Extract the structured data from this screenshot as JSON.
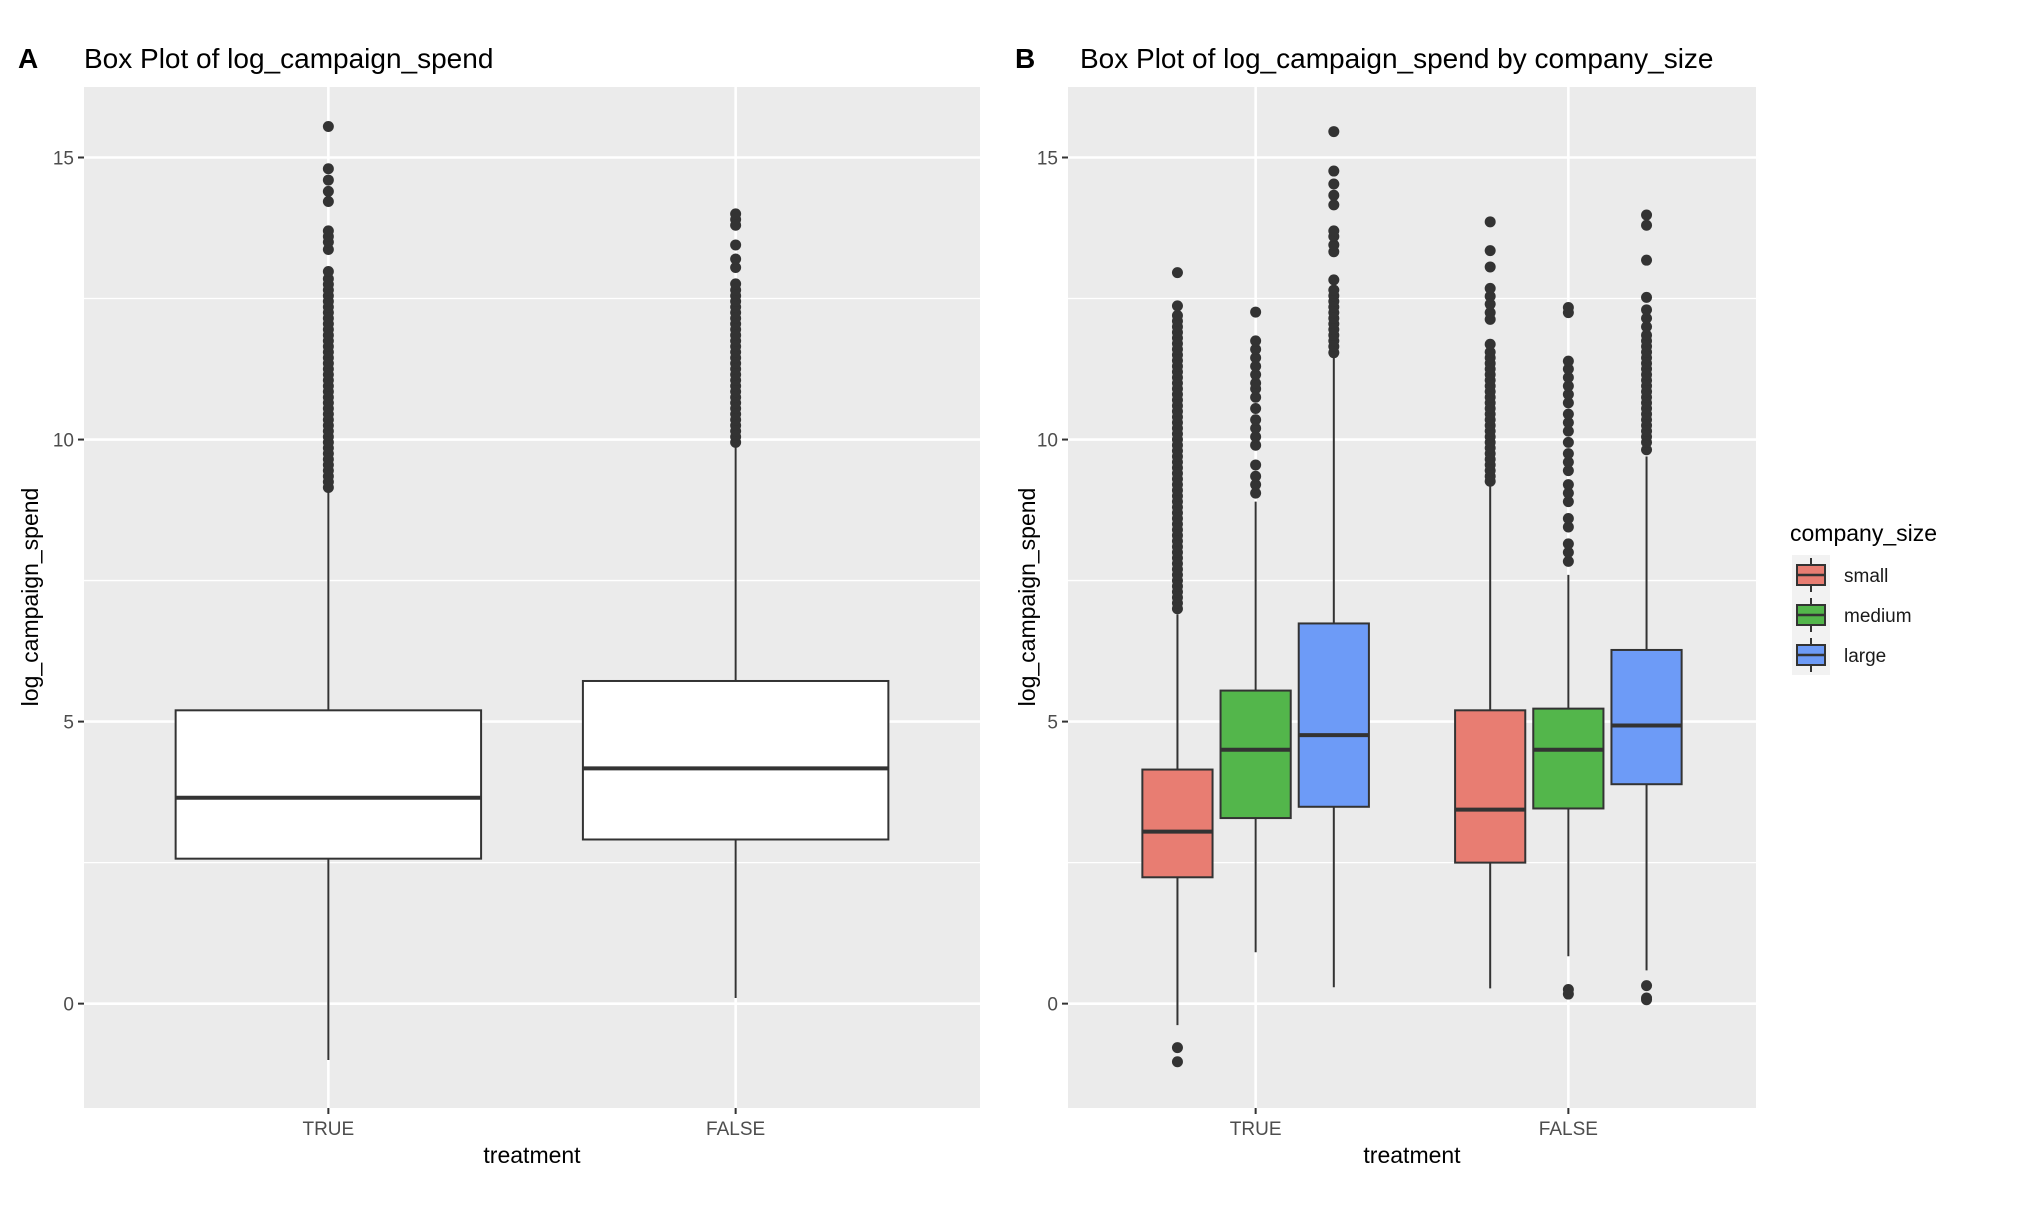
{
  "figure": {
    "panel_a": {
      "tag": "A",
      "title": "Box Plot of log_campaign_spend",
      "xlabel": "treatment",
      "ylabel": "log_campaign_spend"
    },
    "panel_b": {
      "tag": "B",
      "title": "Box Plot of log_campaign_spend by company_size",
      "xlabel": "treatment",
      "ylabel": "log_campaign_spend"
    },
    "legend": {
      "title": "company_size",
      "items": [
        {
          "label": "small",
          "color": "#F8766D"
        },
        {
          "label": "medium",
          "color": "#00BA38"
        },
        {
          "label": "large",
          "color": "#619CFF"
        }
      ]
    },
    "colors": {
      "panel_bg": "#EBEBEB",
      "grid": "#FFFFFF",
      "box_line": "#333333",
      "outlier": "#333333",
      "small": "#E87D72",
      "medium": "#53B64B",
      "large": "#6D9BF7"
    }
  },
  "chart_data": [
    {
      "type": "box",
      "title": "Box Plot of log_campaign_spend",
      "xlabel": "treatment",
      "ylabel": "log_campaign_spend",
      "categories": [
        "TRUE",
        "FALSE"
      ],
      "yticks": [
        0,
        5,
        10,
        15
      ],
      "ylim": [
        -1.85,
        16.25
      ],
      "grid": true,
      "boxes": [
        {
          "category": "TRUE",
          "whisker_low": -1.0,
          "q1": 2.57,
          "median": 3.65,
          "q3": 5.2,
          "whisker_high": 9.1,
          "outliers": [
            9.15,
            9.25,
            9.35,
            9.45,
            9.55,
            9.65,
            9.75,
            9.85,
            9.95,
            10.05,
            10.15,
            10.25,
            10.35,
            10.45,
            10.55,
            10.65,
            10.75,
            10.85,
            10.95,
            11.05,
            11.15,
            11.25,
            11.35,
            11.45,
            11.55,
            11.65,
            11.75,
            11.85,
            11.95,
            12.05,
            12.15,
            12.25,
            12.35,
            12.45,
            12.55,
            12.65,
            12.75,
            12.85,
            12.98,
            13.37,
            13.5,
            13.6,
            13.7,
            14.22,
            14.4,
            14.6,
            14.8,
            15.55
          ]
        },
        {
          "category": "FALSE",
          "whisker_low": 0.1,
          "q1": 2.91,
          "median": 4.17,
          "q3": 5.72,
          "whisker_high": 9.9,
          "outliers": [
            9.95,
            10.05,
            10.15,
            10.25,
            10.35,
            10.45,
            10.55,
            10.65,
            10.75,
            10.85,
            10.95,
            11.05,
            11.15,
            11.25,
            11.35,
            11.45,
            11.55,
            11.65,
            11.75,
            11.85,
            11.95,
            12.05,
            12.15,
            12.25,
            12.35,
            12.45,
            12.55,
            12.65,
            12.76,
            13.05,
            13.2,
            13.45,
            13.8,
            13.9,
            14.0
          ]
        }
      ]
    },
    {
      "type": "box",
      "title": "Box Plot of log_campaign_spend by company_size",
      "xlabel": "treatment",
      "ylabel": "log_campaign_spend",
      "categories": [
        "TRUE",
        "FALSE"
      ],
      "yticks": [
        0,
        5,
        10,
        15
      ],
      "ylim": [
        -1.85,
        16.25
      ],
      "grid": true,
      "legend": {
        "title": "company_size",
        "entries": [
          "small",
          "medium",
          "large"
        ],
        "position": "right"
      },
      "groups": [
        {
          "category": "TRUE",
          "series": "small",
          "whisker_low": -0.38,
          "q1": 2.24,
          "median": 3.05,
          "q3": 4.15,
          "whisker_high": 6.9,
          "outliers": [
            -1.03,
            -0.78,
            7.0,
            7.1,
            7.2,
            7.3,
            7.4,
            7.5,
            7.6,
            7.7,
            7.8,
            7.9,
            8.0,
            8.1,
            8.2,
            8.3,
            8.4,
            8.5,
            8.6,
            8.7,
            8.8,
            8.9,
            9.0,
            9.1,
            9.2,
            9.3,
            9.4,
            9.5,
            9.6,
            9.7,
            9.8,
            9.9,
            10.0,
            10.1,
            10.2,
            10.3,
            10.4,
            10.5,
            10.6,
            10.7,
            10.8,
            10.9,
            11.0,
            11.1,
            11.2,
            11.3,
            11.4,
            11.5,
            11.6,
            11.7,
            11.8,
            11.9,
            12.0,
            12.1,
            12.2,
            12.37,
            12.96
          ]
        },
        {
          "category": "TRUE",
          "series": "medium",
          "whisker_low": 0.91,
          "q1": 3.29,
          "median": 4.5,
          "q3": 5.55,
          "whisker_high": 8.9,
          "outliers": [
            9.05,
            9.2,
            9.35,
            9.55,
            9.9,
            10.05,
            10.2,
            10.35,
            10.55,
            10.75,
            10.9,
            11.0,
            11.15,
            11.3,
            11.45,
            11.6,
            11.75,
            12.26
          ]
        },
        {
          "category": "TRUE",
          "series": "large",
          "whisker_low": 0.29,
          "q1": 3.49,
          "median": 4.76,
          "q3": 6.74,
          "whisker_high": 11.45,
          "outliers": [
            11.54,
            11.65,
            11.75,
            11.85,
            11.95,
            12.05,
            12.15,
            12.25,
            12.35,
            12.45,
            12.55,
            12.65,
            12.83,
            13.33,
            13.45,
            13.6,
            13.7,
            14.16,
            14.33,
            14.53,
            14.76,
            15.46
          ]
        },
        {
          "category": "FALSE",
          "series": "small",
          "whisker_low": 0.27,
          "q1": 2.5,
          "median": 3.44,
          "q3": 5.2,
          "whisker_high": 9.2,
          "outliers": [
            9.26,
            9.35,
            9.45,
            9.55,
            9.65,
            9.75,
            9.85,
            9.95,
            10.05,
            10.15,
            10.25,
            10.35,
            10.45,
            10.55,
            10.65,
            10.75,
            10.85,
            10.95,
            11.05,
            11.15,
            11.25,
            11.35,
            11.45,
            11.55,
            11.69,
            12.13,
            12.25,
            12.4,
            12.54,
            12.68,
            13.06,
            13.35,
            13.86
          ]
        },
        {
          "category": "FALSE",
          "series": "medium",
          "whisker_low": 0.84,
          "q1": 3.46,
          "median": 4.5,
          "q3": 5.23,
          "whisker_high": 7.6,
          "outliers": [
            0.17,
            0.25,
            7.84,
            8.0,
            8.15,
            8.45,
            8.6,
            8.9,
            9.05,
            9.2,
            9.45,
            9.6,
            9.75,
            9.95,
            10.15,
            10.3,
            10.45,
            10.65,
            10.8,
            10.95,
            11.1,
            11.25,
            11.39,
            12.25,
            12.34
          ]
        },
        {
          "category": "FALSE",
          "series": "large",
          "whisker_low": 0.59,
          "q1": 3.89,
          "median": 4.93,
          "q3": 6.27,
          "whisker_high": 9.7,
          "outliers": [
            0.07,
            0.1,
            0.32,
            9.82,
            9.95,
            10.05,
            10.15,
            10.25,
            10.35,
            10.45,
            10.55,
            10.65,
            10.75,
            10.85,
            10.95,
            11.05,
            11.15,
            11.25,
            11.35,
            11.45,
            11.55,
            11.65,
            11.75,
            11.85,
            12.0,
            12.15,
            12.3,
            12.52,
            13.18,
            13.8,
            13.98
          ]
        }
      ]
    }
  ]
}
